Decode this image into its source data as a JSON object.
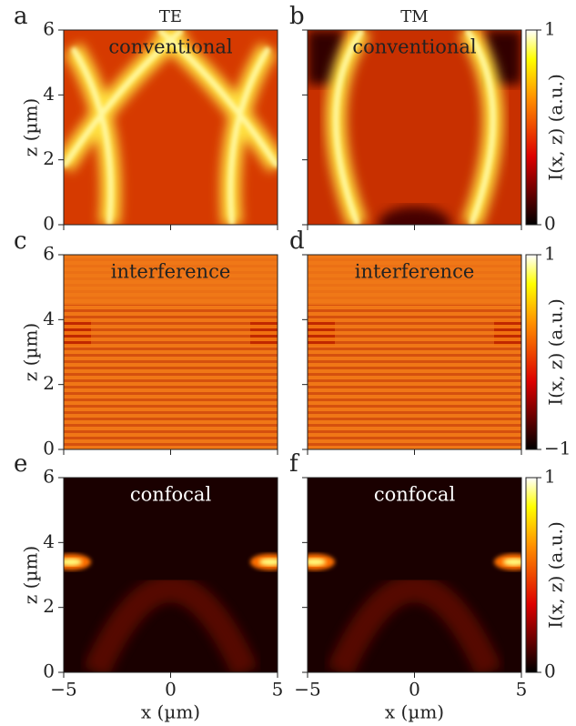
{
  "chart_data": [
    {
      "type": "heatmap",
      "panel": "a",
      "title": "TE",
      "annotation": "conventional",
      "ylabel": "z (µm)",
      "show_xticklabels": false,
      "show_yticklabels": true,
      "xlim": [
        -5,
        5
      ],
      "xticks": [
        {
          "value": -5,
          "label": "−5"
        },
        0,
        5
      ],
      "ylim": [
        0,
        6
      ],
      "yticks": [
        0,
        2,
        4,
        6
      ]
    },
    {
      "type": "heatmap",
      "panel": "b",
      "title": "TM",
      "annotation": "conventional",
      "show_xticklabels": false,
      "show_yticklabels": false,
      "xlim": [
        -5,
        5
      ],
      "xticks": [
        {
          "value": -5,
          "label": "−5"
        },
        0,
        5
      ],
      "ylim": [
        0,
        6
      ],
      "yticks": [
        0,
        2,
        4,
        6
      ],
      "colorbar": {
        "lim": [
          0,
          1
        ],
        "ticks": [
          0,
          1
        ],
        "label": "I(x, z) (a.u.)"
      }
    },
    {
      "type": "heatmap",
      "panel": "c",
      "annotation": "interference",
      "ylabel": "z (µm)",
      "show_xticklabels": false,
      "show_yticklabels": true,
      "xlim": [
        -5,
        5
      ],
      "xticks": [
        {
          "value": -5,
          "label": "−5"
        },
        0,
        5
      ],
      "ylim": [
        0,
        6
      ],
      "yticks": [
        0,
        2,
        4,
        6
      ]
    },
    {
      "type": "heatmap",
      "panel": "d",
      "annotation": "interference",
      "show_xticklabels": false,
      "show_yticklabels": false,
      "xlim": [
        -5,
        5
      ],
      "xticks": [
        {
          "value": -5,
          "label": "−5"
        },
        0,
        5
      ],
      "ylim": [
        0,
        6
      ],
      "yticks": [
        0,
        2,
        4,
        6
      ],
      "colorbar": {
        "lim": [
          -1,
          1
        ],
        "ticks": [
          {
            "value": -1,
            "label": "−1"
          },
          1
        ],
        "label": "I(x, z) (a.u.)"
      }
    },
    {
      "type": "heatmap",
      "panel": "e",
      "annotation": "confocal",
      "xlabel": "x (µm)",
      "ylabel": "z (µm)",
      "show_xticklabels": true,
      "show_yticklabels": true,
      "xlim": [
        -5,
        5
      ],
      "xticks": [
        {
          "value": -5,
          "label": "−5"
        },
        0,
        5
      ],
      "ylim": [
        0,
        6
      ],
      "yticks": [
        0,
        2,
        4,
        6
      ]
    },
    {
      "type": "heatmap",
      "panel": "f",
      "annotation": "confocal",
      "xlabel": "x (µm)",
      "show_xticklabels": true,
      "show_yticklabels": false,
      "xlim": [
        -5,
        5
      ],
      "xticks": [
        {
          "value": -5,
          "label": "−5"
        },
        0,
        5
      ],
      "ylim": [
        0,
        6
      ],
      "yticks": [
        0,
        2,
        4,
        6
      ],
      "colorbar": {
        "lim": [
          0,
          1
        ],
        "ticks": [
          0,
          1
        ],
        "label": "I(x, z) (a.u.)"
      }
    }
  ]
}
